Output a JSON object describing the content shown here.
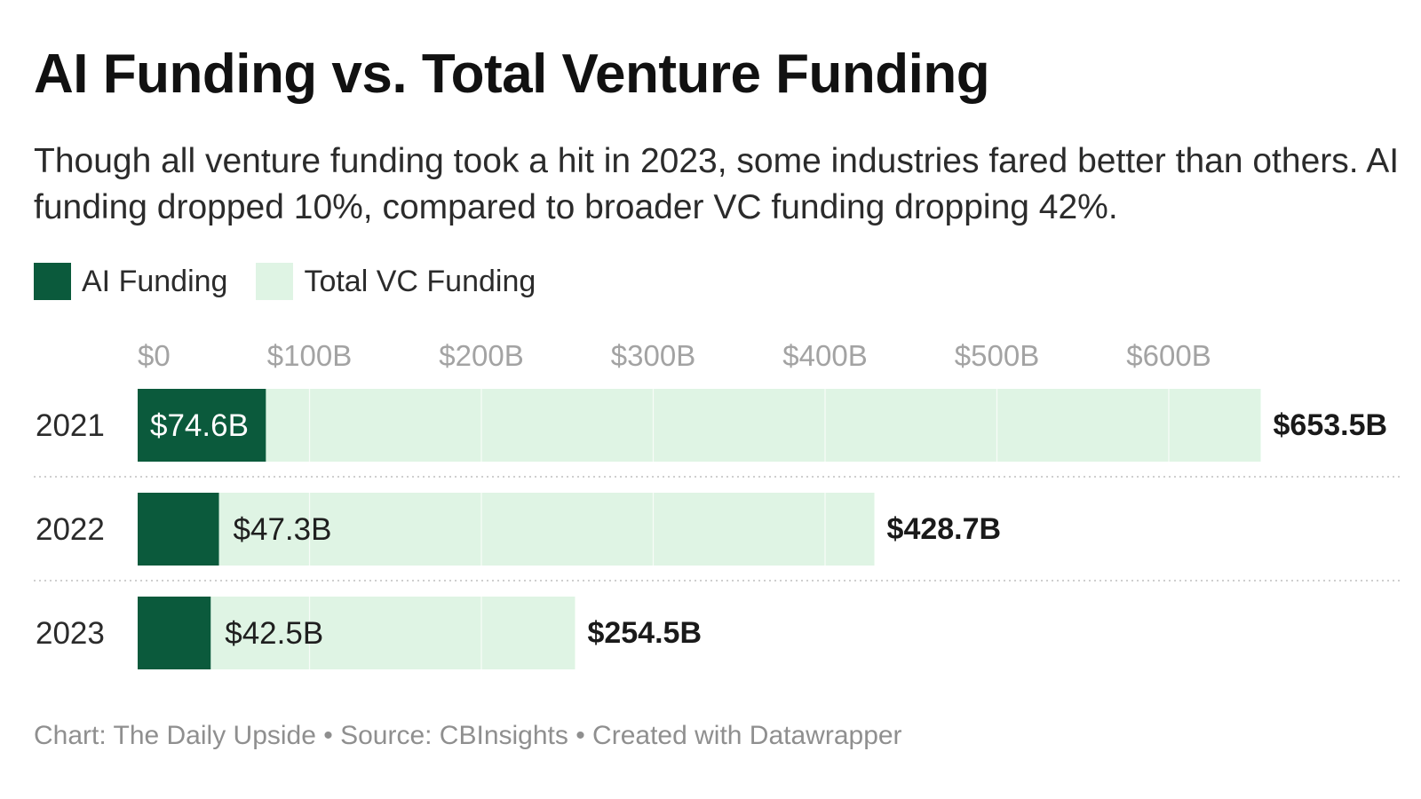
{
  "header": {
    "title": "AI Funding vs. Total Venture Funding",
    "subtitle": "Though all venture funding took a hit in 2023, some industries fared better than others. AI funding dropped 10%, compared to broader VC funding dropping 42%."
  },
  "legend": [
    {
      "label": "AI Funding",
      "color": "#0b5a3c"
    },
    {
      "label": "Total VC Funding",
      "color": "#dff4e4"
    }
  ],
  "footer": {
    "text": "Chart: The Daily Upside • Source: CBInsights • Created with Datawrapper"
  },
  "chart_data": {
    "type": "bar",
    "orientation": "horizontal",
    "categories": [
      "2021",
      "2022",
      "2023"
    ],
    "series": [
      {
        "name": "AI Funding",
        "values": [
          74.6,
          47.3,
          42.5
        ],
        "labels": [
          "$74.6B",
          "$47.3B",
          "$42.5B"
        ],
        "color": "#0b5a3c"
      },
      {
        "name": "Total VC Funding",
        "values": [
          653.5,
          428.7,
          254.5
        ],
        "labels": [
          "$653.5B",
          "$428.7B",
          "$254.5B"
        ],
        "color": "#dff4e4"
      }
    ],
    "x_ticks": [
      0,
      100,
      200,
      300,
      400,
      500,
      600
    ],
    "x_tick_labels": [
      "$0",
      "$100B",
      "$200B",
      "$300B",
      "$400B",
      "$500B",
      "$600B"
    ],
    "grid": true,
    "legend_position": "top-left"
  }
}
